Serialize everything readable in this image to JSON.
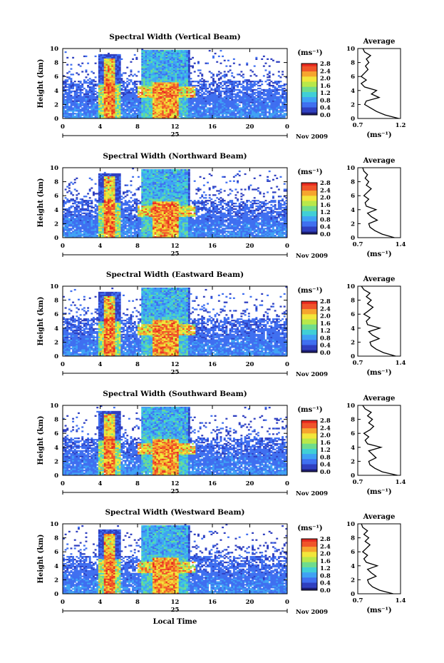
{
  "chart_data": [
    {
      "type": "heatmap",
      "title": "Spectral Width (Vertical Beam)",
      "ylabel": "Height (km)",
      "xlabel": "",
      "x_ticks": [
        "0",
        "4",
        "8",
        "12",
        "16",
        "20",
        "0"
      ],
      "y_ticks": [
        "0",
        "2",
        "4",
        "6",
        "8",
        "10"
      ],
      "xlim": [
        0,
        24
      ],
      "ylim": [
        0,
        10
      ],
      "date_label": "25",
      "month_label": "Nov 2009",
      "colorbar": {
        "unit": "(ms⁻¹)",
        "ticks": [
          "0.0",
          "0.4",
          "0.8",
          "1.2",
          "1.6",
          "2.0",
          "2.4",
          "2.8"
        ]
      },
      "average_profile": {
        "title": "Average",
        "xlabel": "(ms⁻¹)",
        "x_ticks": [
          "0.7",
          "1.2"
        ],
        "xlim": [
          0.7,
          1.2
        ],
        "y_ticks": [
          "0",
          "2",
          "4",
          "6",
          "8",
          "10"
        ],
        "height_km": [
          0.0,
          0.5,
          1.0,
          1.5,
          2.0,
          2.5,
          3.0,
          3.5,
          4.0,
          4.5,
          5.0,
          5.5,
          6.0,
          6.5,
          7.0,
          7.5,
          8.0,
          8.5,
          9.0,
          9.5,
          10.0
        ],
        "width_ms": [
          1.18,
          1.02,
          0.92,
          0.85,
          0.78,
          0.8,
          0.95,
          0.86,
          0.92,
          0.78,
          0.74,
          0.8,
          0.74,
          0.78,
          0.82,
          0.79,
          0.83,
          0.8,
          0.85,
          0.78,
          0.76
        ]
      }
    },
    {
      "type": "heatmap",
      "title": "Spectral Width (Northward Beam)",
      "ylabel": "Height (km)",
      "xlabel": "",
      "x_ticks": [
        "0",
        "4",
        "8",
        "12",
        "16",
        "20",
        "0"
      ],
      "y_ticks": [
        "0",
        "2",
        "4",
        "6",
        "8",
        "10"
      ],
      "xlim": [
        0,
        24
      ],
      "ylim": [
        0,
        10
      ],
      "date_label": "25",
      "month_label": "Nov 2009",
      "colorbar": {
        "unit": "(ms⁻¹)",
        "ticks": [
          "0.0",
          "0.4",
          "0.8",
          "1.2",
          "1.6",
          "2.0",
          "2.4",
          "2.8"
        ]
      },
      "average_profile": {
        "title": "Average",
        "xlabel": "(ms⁻¹)",
        "x_ticks": [
          "0.7",
          "1.4"
        ],
        "xlim": [
          0.7,
          1.4
        ],
        "y_ticks": [
          "0",
          "2",
          "4",
          "6",
          "8",
          "10"
        ],
        "height_km": [
          0.0,
          0.5,
          1.0,
          1.5,
          2.0,
          2.5,
          3.0,
          3.5,
          4.0,
          4.5,
          5.0,
          5.5,
          6.0,
          6.5,
          7.0,
          7.5,
          8.0,
          8.5,
          9.0,
          9.5,
          10.0
        ],
        "width_ms": [
          1.3,
          1.1,
          0.98,
          0.9,
          0.88,
          1.02,
          0.92,
          0.86,
          1.0,
          0.84,
          0.82,
          0.88,
          0.8,
          0.86,
          0.92,
          0.84,
          0.88,
          0.82,
          0.86,
          0.8,
          0.78
        ]
      }
    },
    {
      "type": "heatmap",
      "title": "Spectral Width (Eastward Beam)",
      "ylabel": "Height (km)",
      "xlabel": "",
      "x_ticks": [
        "0",
        "4",
        "8",
        "12",
        "16",
        "20",
        "0"
      ],
      "y_ticks": [
        "0",
        "2",
        "4",
        "6",
        "8",
        "10"
      ],
      "xlim": [
        0,
        24
      ],
      "ylim": [
        0,
        10
      ],
      "date_label": "25",
      "month_label": "Nov 2009",
      "colorbar": {
        "unit": "(ms⁻¹)",
        "ticks": [
          "0.0",
          "0.4",
          "0.8",
          "1.2",
          "1.6",
          "2.0",
          "2.4",
          "2.8"
        ]
      },
      "average_profile": {
        "title": "Average",
        "xlabel": "(ms⁻¹)",
        "x_ticks": [
          "0.7",
          "1.4"
        ],
        "xlim": [
          0.7,
          1.4
        ],
        "y_ticks": [
          "0",
          "2",
          "4",
          "6",
          "8",
          "10"
        ],
        "height_km": [
          0.0,
          0.5,
          1.0,
          1.5,
          2.0,
          2.5,
          3.0,
          3.5,
          4.0,
          4.5,
          5.0,
          5.5,
          6.0,
          6.5,
          7.0,
          7.5,
          8.0,
          8.5,
          9.0,
          9.5,
          10.0
        ],
        "width_ms": [
          1.32,
          1.12,
          1.0,
          0.92,
          0.9,
          1.05,
          0.94,
          0.88,
          1.06,
          0.86,
          0.84,
          0.9,
          0.8,
          0.88,
          0.95,
          0.86,
          0.92,
          0.84,
          0.9,
          0.8,
          0.76
        ]
      }
    },
    {
      "type": "heatmap",
      "title": "Spectral Width (Southward Beam)",
      "ylabel": "Height (km)",
      "xlabel": "",
      "x_ticks": [
        "0",
        "4",
        "8",
        "12",
        "16",
        "20",
        "0"
      ],
      "y_ticks": [
        "0",
        "2",
        "4",
        "6",
        "8",
        "10"
      ],
      "xlim": [
        0,
        24
      ],
      "ylim": [
        0,
        10
      ],
      "date_label": "25",
      "month_label": "Nov 2009",
      "colorbar": {
        "unit": "(ms⁻¹)",
        "ticks": [
          "0.0",
          "0.4",
          "0.8",
          "1.2",
          "1.6",
          "2.0",
          "2.4",
          "2.8"
        ]
      },
      "average_profile": {
        "title": "Average",
        "xlabel": "(ms⁻¹)",
        "x_ticks": [
          "0.7",
          "1.4"
        ],
        "xlim": [
          0.7,
          1.4
        ],
        "y_ticks": [
          "0",
          "2",
          "4",
          "6",
          "8",
          "10"
        ],
        "height_km": [
          0.0,
          0.5,
          1.0,
          1.5,
          2.0,
          2.5,
          3.0,
          3.5,
          4.0,
          4.5,
          5.0,
          5.5,
          6.0,
          6.5,
          7.0,
          7.5,
          8.0,
          8.5,
          9.0,
          9.5,
          10.0
        ],
        "width_ms": [
          1.35,
          1.1,
          0.98,
          0.9,
          0.88,
          1.0,
          0.94,
          0.88,
          1.08,
          0.86,
          0.82,
          0.88,
          0.8,
          0.9,
          0.96,
          0.88,
          0.94,
          0.86,
          0.92,
          0.82,
          0.78
        ]
      }
    },
    {
      "type": "heatmap",
      "title": "Spectral Width (Westward Beam)",
      "ylabel": "Height (km)",
      "xlabel": "Local Time",
      "x_ticks": [
        "0",
        "4",
        "8",
        "12",
        "16",
        "20",
        "0"
      ],
      "y_ticks": [
        "0",
        "2",
        "4",
        "6",
        "8",
        "10"
      ],
      "xlim": [
        0,
        24
      ],
      "ylim": [
        0,
        10
      ],
      "date_label": "25",
      "month_label": "Nov 2009",
      "colorbar": {
        "unit": "(ms⁻¹)",
        "ticks": [
          "0.0",
          "0.4",
          "0.8",
          "1.2",
          "1.6",
          "2.0",
          "2.4",
          "2.8"
        ]
      },
      "average_profile": {
        "title": "Average",
        "xlabel": "(ms⁻¹)",
        "x_ticks": [
          "0.7",
          "1.4"
        ],
        "xlim": [
          0.7,
          1.4
        ],
        "y_ticks": [
          "0",
          "2",
          "4",
          "6",
          "8",
          "10"
        ],
        "height_km": [
          0.0,
          0.5,
          1.0,
          1.5,
          2.0,
          2.5,
          3.0,
          3.5,
          4.0,
          4.5,
          5.0,
          5.5,
          6.0,
          6.5,
          7.0,
          7.5,
          8.0,
          8.5,
          9.0,
          9.5,
          10.0
        ],
        "width_ms": [
          1.28,
          1.06,
          0.94,
          0.88,
          0.86,
          1.0,
          0.92,
          0.86,
          1.02,
          0.84,
          0.8,
          0.86,
          0.78,
          0.84,
          0.9,
          0.82,
          0.88,
          0.8,
          0.86,
          0.78,
          0.76
        ]
      }
    }
  ],
  "colors": {
    "scale": [
      "#1c1c6e",
      "#2f3fc0",
      "#3f6ff0",
      "#3fa2f4",
      "#41cfd6",
      "#6fdc8c",
      "#b8e84a",
      "#f2e63a",
      "#f6a52e",
      "#f0552a",
      "#e82a1f"
    ]
  }
}
